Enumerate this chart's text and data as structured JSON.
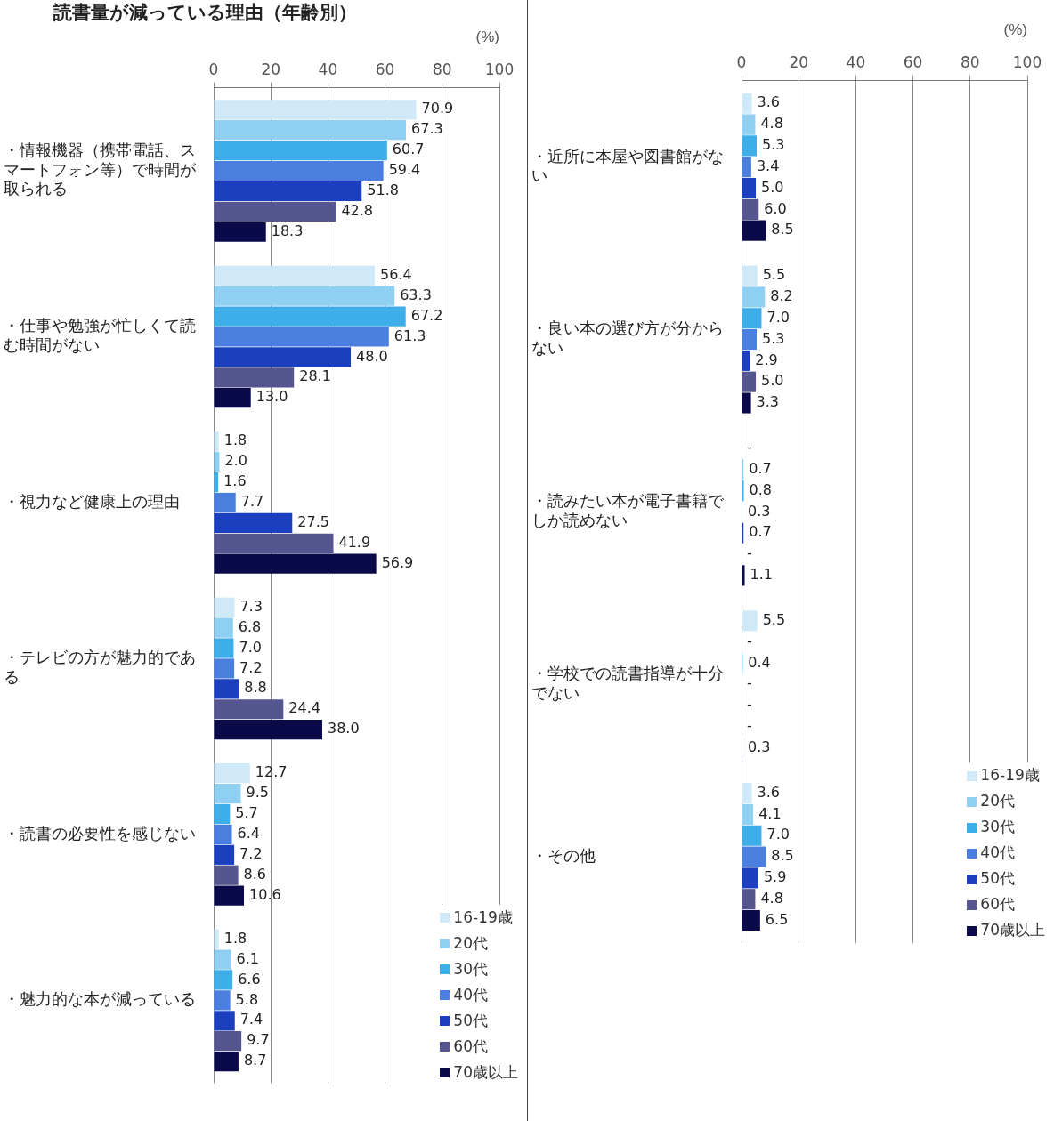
{
  "chart_data": [
    {
      "type": "bar",
      "orientation": "horizontal",
      "title": "読書量が減っている理由（年齢別）",
      "xlabel": "(%)",
      "categories": [
        "・情報機器（携帯電話、スマートフォン等）で時間が取られる",
        "・仕事や勉強が忙しくて読む時間がない",
        "・視力など健康上の理由",
        "・テレビの方が魅力的である",
        "・読書の必要性を感じない",
        "・魅力的な本が減っている"
      ],
      "series": [
        {
          "name": "16-19歳",
          "color": "#cfe9f9",
          "values": [
            70.9,
            56.4,
            1.8,
            7.3,
            12.7,
            1.8
          ],
          "value_labels": [
            "70.9",
            "56.4",
            "1.8",
            "7.3",
            "12.7",
            "1.8"
          ]
        },
        {
          "name": "20代",
          "color": "#8fd0f2",
          "values": [
            67.3,
            63.3,
            2.0,
            6.8,
            9.5,
            6.1
          ],
          "value_labels": [
            "67.3",
            "63.3",
            "2.0",
            "6.8",
            "9.5",
            "6.1"
          ]
        },
        {
          "name": "30代",
          "color": "#3eaee8",
          "values": [
            60.7,
            67.2,
            1.6,
            7.0,
            5.7,
            6.6
          ],
          "value_labels": [
            "60.7",
            "67.2",
            "1.6",
            "7.0",
            "5.7",
            "6.6"
          ]
        },
        {
          "name": "40代",
          "color": "#4a7fe0",
          "values": [
            59.4,
            61.3,
            7.7,
            7.2,
            6.4,
            5.8
          ],
          "value_labels": [
            "59.4",
            "61.3",
            "7.7",
            "7.2",
            "6.4",
            "5.8"
          ]
        },
        {
          "name": "50代",
          "color": "#1c3fc0",
          "values": [
            51.8,
            48.0,
            27.5,
            8.8,
            7.2,
            7.4
          ],
          "value_labels": [
            "51.8",
            "48.0",
            "27.5",
            "8.8",
            "7.2",
            "7.4"
          ]
        },
        {
          "name": "60代",
          "color": "#55558f",
          "values": [
            42.8,
            28.1,
            41.9,
            24.4,
            8.6,
            9.7
          ],
          "value_labels": [
            "42.8",
            "28.1",
            "41.9",
            "24.4",
            "8.6",
            "9.7"
          ]
        },
        {
          "name": "70歳以上",
          "color": "#0a0a4a",
          "values": [
            18.3,
            13.0,
            56.9,
            38.0,
            10.6,
            8.7
          ],
          "value_labels": [
            "18.3",
            "13.0",
            "56.9",
            "38.0",
            "10.6",
            "8.7"
          ]
        }
      ],
      "xlim": [
        0,
        100
      ],
      "xticks": [
        0,
        20,
        40,
        60,
        80,
        100
      ],
      "grid": "x",
      "legend": "bottom right"
    },
    {
      "type": "bar",
      "orientation": "horizontal",
      "xlabel": "(%)",
      "categories": [
        "・近所に本屋や図書館がない",
        "・良い本の選び方が分からない",
        "・読みたい本が電子書籍でしか読めない",
        "・学校での読書指導が十分でない",
        "・その他"
      ],
      "series": [
        {
          "name": "16-19歳",
          "color": "#cfe9f9",
          "values": [
            3.6,
            5.5,
            null,
            5.5,
            3.6
          ],
          "value_labels": [
            "3.6",
            "5.5",
            "-",
            "5.5",
            "3.6"
          ]
        },
        {
          "name": "20代",
          "color": "#8fd0f2",
          "values": [
            4.8,
            8.2,
            0.7,
            null,
            4.1
          ],
          "value_labels": [
            "4.8",
            "8.2",
            "0.7",
            "-",
            "4.1"
          ]
        },
        {
          "name": "30代",
          "color": "#3eaee8",
          "values": [
            5.3,
            7.0,
            0.8,
            0.4,
            7.0
          ],
          "value_labels": [
            "5.3",
            "7.0",
            "0.8",
            "0.4",
            "7.0"
          ]
        },
        {
          "name": "40代",
          "color": "#4a7fe0",
          "values": [
            3.4,
            5.3,
            0.3,
            null,
            8.5
          ],
          "value_labels": [
            "3.4",
            "5.3",
            "0.3",
            "-",
            "8.5"
          ]
        },
        {
          "name": "50代",
          "color": "#1c3fc0",
          "values": [
            5.0,
            2.9,
            0.7,
            null,
            5.9
          ],
          "value_labels": [
            "5.0",
            "2.9",
            "0.7",
            "-",
            "5.9"
          ]
        },
        {
          "name": "60代",
          "color": "#55558f",
          "values": [
            6.0,
            5.0,
            null,
            null,
            4.8
          ],
          "value_labels": [
            "6.0",
            "5.0",
            "-",
            "-",
            "4.8"
          ]
        },
        {
          "name": "70歳以上",
          "color": "#0a0a4a",
          "values": [
            8.5,
            3.3,
            1.1,
            0.3,
            6.5
          ],
          "value_labels": [
            "8.5",
            "3.3",
            "1.1",
            "0.3",
            "6.5"
          ]
        }
      ],
      "xlim": [
        0,
        100
      ],
      "xticks": [
        0,
        20,
        40,
        60,
        80,
        100
      ],
      "grid": "x",
      "legend": "bottom right"
    }
  ]
}
